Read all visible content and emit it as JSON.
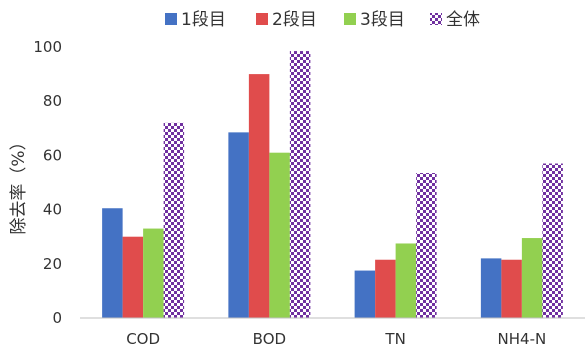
{
  "chart_data": {
    "type": "bar",
    "title": "",
    "xlabel": "",
    "ylabel": "除去率（%）",
    "ylim": [
      0,
      100
    ],
    "yticks": [
      0,
      20,
      40,
      60,
      80,
      100
    ],
    "legend_position": "top",
    "grid": false,
    "categories": [
      "COD",
      "BOD",
      "TN",
      "NH4-N"
    ],
    "series": [
      {
        "name": "1段目",
        "color": "#4472c4",
        "pattern": "solid",
        "values": [
          40.5,
          68.5,
          17.5,
          22.0
        ]
      },
      {
        "name": "2段目",
        "color": "#e04c4c",
        "pattern": "solid",
        "values": [
          30.0,
          90.0,
          21.5,
          21.5
        ]
      },
      {
        "name": "3段目",
        "color": "#92d050",
        "pattern": "solid",
        "values": [
          33.0,
          61.0,
          27.5,
          29.5
        ]
      },
      {
        "name": "全体",
        "color": "#7030a0",
        "pattern": "checker",
        "values": [
          72.0,
          98.5,
          53.5,
          57.0
        ]
      }
    ]
  }
}
